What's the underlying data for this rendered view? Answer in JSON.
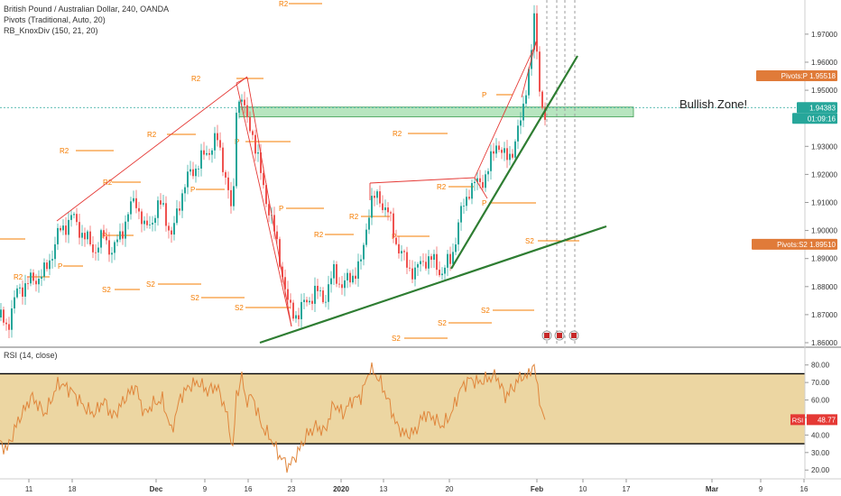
{
  "header": {
    "symbol": "British Pound / Australian Dollar, 240, OANDA",
    "indicator_1": "Pivots (Traditional, Auto, 20)",
    "indicator_2": "RB_KnoxDiv (150, 21, 20)"
  },
  "annotation": "Bullish Zone!",
  "colors": {
    "up": "#26a69a",
    "down": "#ef5350",
    "pivot": "#f57c00",
    "trend": "#2e7d32",
    "rsi_line": "#e0863c",
    "rsi_band": "#e6c883",
    "zone": "#7ccf8a",
    "price_badge": "#26a69a",
    "pivot_badge": "#e07b39",
    "rsi_badge": "#e53935"
  },
  "chart_data": [
    {
      "type": "candlestick",
      "ylim": [
        1.86,
        1.978
      ],
      "y_ticks": [
        "1.97000",
        "1.96000",
        "1.95000",
        "1.94000",
        "1.93000",
        "1.92000",
        "1.91000",
        "1.90000",
        "1.89000",
        "1.88000",
        "1.87000",
        "1.86000"
      ],
      "x_ticks": [
        "11",
        "18",
        "Dec",
        "9",
        "16",
        "23",
        "2020",
        "13",
        "20",
        "Feb",
        "10",
        "17",
        "Mar",
        "9",
        "16"
      ],
      "close_path": [
        [
          0,
          1.869
        ],
        [
          8,
          1.866
        ],
        [
          20,
          1.879
        ],
        [
          35,
          1.882
        ],
        [
          50,
          1.885
        ],
        [
          65,
          1.899
        ],
        [
          80,
          1.905
        ],
        [
          95,
          1.897
        ],
        [
          105,
          1.893
        ],
        [
          115,
          1.898
        ],
        [
          125,
          1.892
        ],
        [
          140,
          1.904
        ],
        [
          150,
          1.912
        ],
        [
          160,
          1.9
        ],
        [
          170,
          1.905
        ],
        [
          180,
          1.91
        ],
        [
          190,
          1.897
        ],
        [
          200,
          1.912
        ],
        [
          210,
          1.92
        ],
        [
          220,
          1.924
        ],
        [
          230,
          1.928
        ],
        [
          240,
          1.933
        ],
        [
          250,
          1.92
        ],
        [
          258,
          1.903
        ],
        [
          262,
          1.945
        ],
        [
          268,
          1.948
        ],
        [
          272,
          1.94
        ],
        [
          280,
          1.935
        ],
        [
          290,
          1.918
        ],
        [
          300,
          1.905
        ],
        [
          310,
          1.89
        ],
        [
          320,
          1.872
        ],
        [
          330,
          1.87
        ],
        [
          340,
          1.875
        ],
        [
          350,
          1.878
        ],
        [
          360,
          1.876
        ],
        [
          370,
          1.885
        ],
        [
          380,
          1.88
        ],
        [
          390,
          1.884
        ],
        [
          400,
          1.888
        ],
        [
          410,
          1.91
        ],
        [
          420,
          1.912
        ],
        [
          430,
          1.906
        ],
        [
          440,
          1.895
        ],
        [
          450,
          1.888
        ],
        [
          460,
          1.885
        ],
        [
          470,
          1.89
        ],
        [
          480,
          1.889
        ],
        [
          490,
          1.885
        ],
        [
          500,
          1.89
        ],
        [
          510,
          1.905
        ],
        [
          520,
          1.915
        ],
        [
          530,
          1.917
        ],
        [
          540,
          1.92
        ],
        [
          550,
          1.932
        ],
        [
          560,
          1.925
        ],
        [
          570,
          1.93
        ],
        [
          578,
          1.94
        ],
        [
          583,
          1.952
        ],
        [
          588,
          1.96
        ],
        [
          592,
          1.975
        ],
        [
          596,
          1.96
        ],
        [
          600,
          1.945
        ],
        [
          604,
          1.94
        ]
      ],
      "last_price": "1.94383",
      "countdown": "01:09:16",
      "zone": {
        "y_range": [
          1.9405,
          1.944
        ],
        "label": "Bullish Zone!"
      },
      "pivot_labels": [
        "R2",
        "R2",
        "R2",
        "R2",
        "R2",
        "R2",
        "R2",
        "R2",
        "R2",
        "R2",
        "P",
        "P",
        "P",
        "P",
        "P",
        "P",
        "P",
        "P",
        "S2",
        "S2",
        "S2",
        "S2",
        "S2",
        "S2",
        "S2",
        "S2",
        "S2"
      ],
      "badges": [
        {
          "name": "Pivots:P",
          "value": "1.95518"
        },
        {
          "name": "Pivots:S2",
          "value": "1.89510"
        }
      ]
    },
    {
      "type": "line",
      "title": "RSI (14, close)",
      "ylim": [
        16,
        85
      ],
      "y_ticks": [
        "80.00",
        "70.00",
        "60.00",
        "50.00",
        "40.00",
        "30.00",
        "20.00"
      ],
      "bands": [
        35,
        75
      ],
      "last_value_label": "RSI",
      "last_value": "48.77",
      "series_path": [
        [
          0,
          35
        ],
        [
          8,
          32
        ],
        [
          20,
          48
        ],
        [
          35,
          62
        ],
        [
          50,
          52
        ],
        [
          65,
          70
        ],
        [
          80,
          65
        ],
        [
          95,
          55
        ],
        [
          105,
          52
        ],
        [
          115,
          60
        ],
        [
          125,
          50
        ],
        [
          140,
          62
        ],
        [
          150,
          68
        ],
        [
          160,
          52
        ],
        [
          170,
          58
        ],
        [
          180,
          60
        ],
        [
          190,
          42
        ],
        [
          200,
          62
        ],
        [
          210,
          68
        ],
        [
          220,
          70
        ],
        [
          230,
          65
        ],
        [
          240,
          68
        ],
        [
          250,
          55
        ],
        [
          258,
          32
        ],
        [
          262,
          62
        ],
        [
          268,
          74
        ],
        [
          272,
          60
        ],
        [
          280,
          62
        ],
        [
          290,
          45
        ],
        [
          300,
          38
        ],
        [
          310,
          28
        ],
        [
          320,
          22
        ],
        [
          330,
          30
        ],
        [
          340,
          40
        ],
        [
          350,
          45
        ],
        [
          360,
          42
        ],
        [
          370,
          58
        ],
        [
          380,
          52
        ],
        [
          390,
          60
        ],
        [
          400,
          62
        ],
        [
          410,
          78
        ],
        [
          420,
          72
        ],
        [
          430,
          60
        ],
        [
          440,
          45
        ],
        [
          450,
          40
        ],
        [
          460,
          42
        ],
        [
          470,
          52
        ],
        [
          480,
          50
        ],
        [
          490,
          45
        ],
        [
          500,
          52
        ],
        [
          510,
          66
        ],
        [
          520,
          72
        ],
        [
          530,
          70
        ],
        [
          540,
          72
        ],
        [
          550,
          74
        ],
        [
          560,
          62
        ],
        [
          570,
          68
        ],
        [
          578,
          74
        ],
        [
          583,
          72
        ],
        [
          588,
          78
        ],
        [
          592,
          78
        ],
        [
          596,
          68
        ],
        [
          600,
          55
        ],
        [
          604,
          48.77
        ]
      ]
    }
  ]
}
